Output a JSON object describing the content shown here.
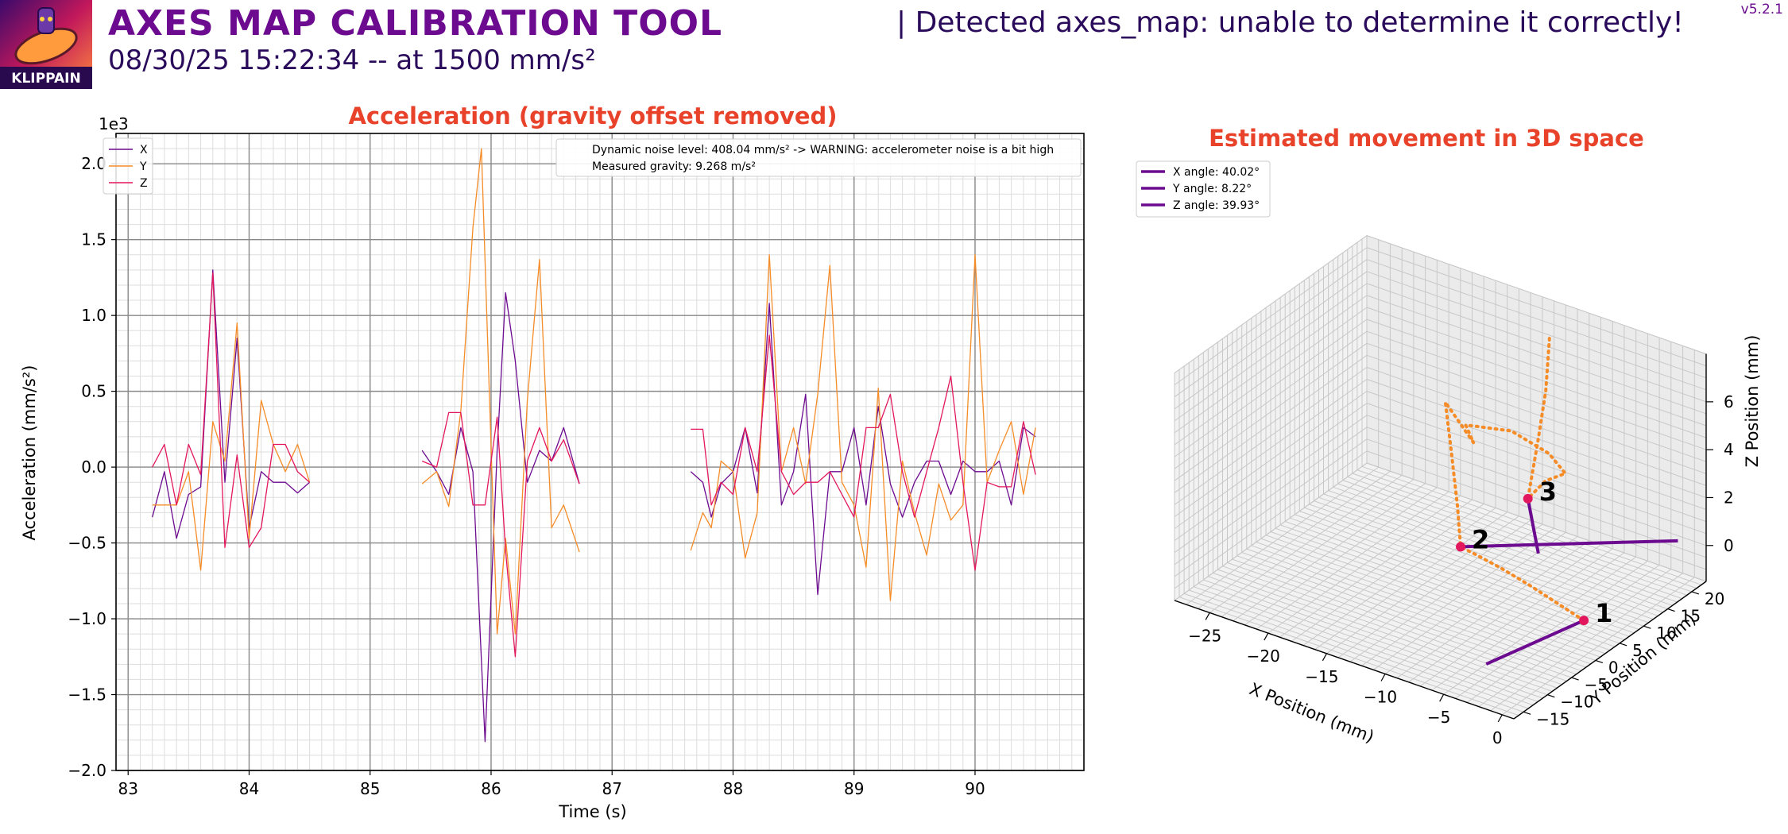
{
  "header": {
    "title": "AXES MAP CALIBRATION TOOL",
    "subtitle": "08/30/25 15:22:34 -- at 1500 mm/s²",
    "status": "| Detected axes_map: unable to determine it correctly!",
    "version": "v5.2.1",
    "logo_text": "KLIPPAIN"
  },
  "colors": {
    "title": "#6c0b8f",
    "plot_title": "#e8422b",
    "x": "#6c0b8f",
    "y": "#f58c28",
    "z": "#e3175d",
    "point": "#e3175d",
    "path": "#f58c28"
  },
  "chart_data": [
    {
      "type": "line",
      "title": "Acceleration (gravity offset removed)",
      "xlabel": "Time (s)",
      "ylabel": "Acceleration (mm/s²)",
      "y_scale_label": "1e3",
      "xlim": [
        82.9,
        90.9
      ],
      "ylim": [
        -2.0,
        2.2
      ],
      "x_ticks": [
        "83",
        "84",
        "85",
        "86",
        "87",
        "88",
        "89",
        "90"
      ],
      "y_ticks": [
        "−2.0",
        "−1.5",
        "−1.0",
        "−0.5",
        "0.0",
        "0.5",
        "1.0",
        "1.5",
        "2.0"
      ],
      "grid": true,
      "legend": {
        "placement": "top-left",
        "entries": [
          "X",
          "Y",
          "Z"
        ]
      },
      "annotations": [
        "Dynamic noise level: 408.04 mm/s² -> WARNING: accelerometer noise is a bit high",
        "Measured gravity: 9.268 m/s²"
      ],
      "series": [
        {
          "name": "X",
          "segments": [
            [
              [
                83.2,
                -0.33
              ],
              [
                83.3,
                -0.03
              ],
              [
                83.4,
                -0.47
              ],
              [
                83.5,
                -0.18
              ],
              [
                83.6,
                -0.13
              ],
              [
                83.7,
                1.3
              ],
              [
                83.8,
                -0.1
              ],
              [
                83.9,
                0.85
              ],
              [
                84.0,
                -0.4
              ],
              [
                84.1,
                -0.03
              ],
              [
                84.2,
                -0.1
              ],
              [
                84.3,
                -0.1
              ],
              [
                84.4,
                -0.17
              ],
              [
                84.5,
                -0.1
              ]
            ],
            [
              [
                85.43,
                0.11
              ],
              [
                85.55,
                -0.03
              ],
              [
                85.65,
                -0.18
              ],
              [
                85.75,
                0.26
              ],
              [
                85.85,
                -0.03
              ],
              [
                85.95,
                -1.81
              ],
              [
                86.05,
                0.11
              ],
              [
                86.12,
                1.15
              ],
              [
                86.2,
                0.7
              ],
              [
                86.3,
                -0.1
              ],
              [
                86.4,
                0.11
              ],
              [
                86.5,
                0.04
              ],
              [
                86.6,
                0.26
              ],
              [
                86.73,
                -0.11
              ]
            ],
            [
              [
                87.65,
                -0.03
              ],
              [
                87.75,
                -0.1
              ],
              [
                87.82,
                -0.33
              ],
              [
                87.9,
                -0.11
              ],
              [
                88.0,
                -0.03
              ],
              [
                88.1,
                0.26
              ],
              [
                88.2,
                -0.17
              ],
              [
                88.3,
                1.08
              ],
              [
                88.4,
                -0.25
              ],
              [
                88.5,
                -0.03
              ],
              [
                88.6,
                0.48
              ],
              [
                88.7,
                -0.84
              ],
              [
                88.8,
                -0.03
              ],
              [
                88.9,
                -0.03
              ],
              [
                89.0,
                0.26
              ],
              [
                89.1,
                -0.25
              ],
              [
                89.2,
                0.4
              ],
              [
                89.3,
                -0.11
              ],
              [
                89.4,
                -0.33
              ],
              [
                89.5,
                -0.1
              ],
              [
                89.6,
                0.04
              ],
              [
                89.7,
                0.04
              ],
              [
                89.8,
                -0.18
              ],
              [
                89.9,
                0.04
              ],
              [
                90.0,
                -0.03
              ],
              [
                90.1,
                -0.03
              ],
              [
                90.2,
                0.04
              ],
              [
                90.3,
                -0.25
              ],
              [
                90.4,
                0.26
              ],
              [
                90.5,
                0.2
              ]
            ]
          ]
        },
        {
          "name": "Y",
          "segments": [
            [
              [
                83.2,
                -0.25
              ],
              [
                83.3,
                -0.25
              ],
              [
                83.4,
                -0.25
              ],
              [
                83.5,
                -0.03
              ],
              [
                83.6,
                -0.68
              ],
              [
                83.7,
                0.3
              ],
              [
                83.8,
                0.04
              ],
              [
                83.9,
                0.95
              ],
              [
                84.0,
                -0.47
              ],
              [
                84.1,
                0.44
              ],
              [
                84.2,
                0.15
              ],
              [
                84.3,
                -0.03
              ],
              [
                84.4,
                0.15
              ],
              [
                84.5,
                -0.1
              ]
            ],
            [
              [
                85.43,
                -0.11
              ],
              [
                85.55,
                -0.03
              ],
              [
                85.65,
                -0.26
              ],
              [
                85.75,
                0.37
              ],
              [
                85.85,
                1.58
              ],
              [
                85.92,
                2.1
              ],
              [
                86.05,
                -1.1
              ],
              [
                86.12,
                -0.47
              ],
              [
                86.2,
                -1.1
              ],
              [
                86.3,
                0.44
              ],
              [
                86.4,
                1.37
              ],
              [
                86.5,
                -0.4
              ],
              [
                86.6,
                -0.25
              ],
              [
                86.73,
                -0.56
              ]
            ],
            [
              [
                87.65,
                -0.55
              ],
              [
                87.75,
                -0.3
              ],
              [
                87.82,
                -0.4
              ],
              [
                87.9,
                0.04
              ],
              [
                88.0,
                -0.03
              ],
              [
                88.1,
                -0.6
              ],
              [
                88.2,
                -0.3
              ],
              [
                88.3,
                1.4
              ],
              [
                88.4,
                -0.03
              ],
              [
                88.5,
                0.26
              ],
              [
                88.6,
                -0.11
              ],
              [
                88.7,
                0.48
              ],
              [
                88.8,
                1.33
              ],
              [
                88.9,
                -0.1
              ],
              [
                89.0,
                -0.25
              ],
              [
                89.1,
                -0.66
              ],
              [
                89.2,
                0.52
              ],
              [
                89.3,
                -0.88
              ],
              [
                89.4,
                0.04
              ],
              [
                89.5,
                -0.3
              ],
              [
                89.6,
                -0.58
              ],
              [
                89.7,
                -0.11
              ],
              [
                89.8,
                -0.35
              ],
              [
                89.9,
                -0.25
              ],
              [
                90.0,
                1.4
              ],
              [
                90.1,
                -0.1
              ],
              [
                90.2,
                0.11
              ],
              [
                90.3,
                0.3
              ],
              [
                90.4,
                -0.18
              ],
              [
                90.5,
                0.26
              ]
            ]
          ]
        },
        {
          "name": "Z",
          "segments": [
            [
              [
                83.2,
                0.0
              ],
              [
                83.3,
                0.15
              ],
              [
                83.4,
                -0.25
              ],
              [
                83.5,
                0.15
              ],
              [
                83.6,
                -0.05
              ],
              [
                83.7,
                1.28
              ],
              [
                83.8,
                -0.53
              ],
              [
                83.9,
                0.08
              ],
              [
                84.0,
                -0.53
              ],
              [
                84.1,
                -0.4
              ],
              [
                84.2,
                0.15
              ],
              [
                84.3,
                0.15
              ],
              [
                84.4,
                -0.03
              ],
              [
                84.5,
                -0.1
              ]
            ],
            [
              [
                85.43,
                0.04
              ],
              [
                85.55,
                0.0
              ],
              [
                85.65,
                0.36
              ],
              [
                85.75,
                0.36
              ],
              [
                85.85,
                -0.25
              ],
              [
                85.95,
                -0.25
              ],
              [
                86.05,
                0.33
              ],
              [
                86.12,
                -0.55
              ],
              [
                86.2,
                -1.25
              ],
              [
                86.3,
                0.04
              ],
              [
                86.4,
                0.26
              ],
              [
                86.5,
                0.04
              ],
              [
                86.6,
                0.18
              ],
              [
                86.73,
                -0.11
              ]
            ],
            [
              [
                87.65,
                0.25
              ],
              [
                87.75,
                0.25
              ],
              [
                87.82,
                -0.25
              ],
              [
                87.9,
                -0.1
              ],
              [
                88.0,
                -0.18
              ],
              [
                88.1,
                0.26
              ],
              [
                88.2,
                -0.03
              ],
              [
                88.3,
                0.87
              ],
              [
                88.4,
                -0.03
              ],
              [
                88.5,
                -0.18
              ],
              [
                88.6,
                -0.1
              ],
              [
                88.7,
                -0.1
              ],
              [
                88.8,
                -0.03
              ],
              [
                88.9,
                -0.18
              ],
              [
                89.0,
                -0.33
              ],
              [
                89.1,
                0.26
              ],
              [
                89.2,
                0.26
              ],
              [
                89.3,
                0.48
              ],
              [
                89.4,
                -0.03
              ],
              [
                89.5,
                -0.33
              ],
              [
                89.6,
                -0.03
              ],
              [
                89.7,
                0.26
              ],
              [
                89.8,
                0.6
              ],
              [
                89.9,
                -0.1
              ],
              [
                90.0,
                -0.68
              ],
              [
                90.1,
                -0.1
              ],
              [
                90.2,
                -0.13
              ],
              [
                90.3,
                -0.13
              ],
              [
                90.4,
                0.3
              ],
              [
                90.5,
                -0.05
              ]
            ]
          ]
        }
      ]
    },
    {
      "type": "scatter",
      "subtype": "3d-path",
      "title": "Estimated movement in 3D space",
      "xlabel": "X Position (mm)",
      "ylabel": "Y Position (mm)",
      "zlabel": "Z Position (mm)",
      "xlim": [
        -28,
        1
      ],
      "ylim": [
        -17,
        23
      ],
      "zlim": [
        -1.5,
        8
      ],
      "x_ticks": [
        -25,
        -20,
        -15,
        -10,
        -5,
        0
      ],
      "y_ticks": [
        -15,
        -10,
        -5,
        0,
        5,
        10,
        15,
        20
      ],
      "z_ticks": [
        0,
        2,
        4,
        6
      ],
      "legend": {
        "placement": "top-left",
        "entries": [
          "X angle: 40.02°",
          "Y angle: 8.22°",
          "Z angle: 39.93°"
        ]
      },
      "points": [
        {
          "label": "1",
          "x": 0.0,
          "y": 0.0,
          "z": 0.0
        },
        {
          "label": "2",
          "x": -13.0,
          "y": 6.0,
          "z": 0.0
        },
        {
          "label": "3",
          "x": -13.0,
          "y": 20.0,
          "z": 0.0
        }
      ],
      "direction_lines": [
        {
          "name": "X angle: 40.02°",
          "from": [
            -2.1,
            -15.2,
            0.0
          ],
          "to": [
            0.0,
            0.0,
            0.0
          ]
        },
        {
          "name": "Y angle: 8.22°",
          "from": [
            -13.0,
            6.0,
            0.0
          ],
          "to": [
            -1.0,
            22.0,
            0.0
          ]
        },
        {
          "name": "Z angle: 39.93°",
          "from": [
            -13.0,
            20.0,
            0.0
          ],
          "to": [
            -8.0,
            10.0,
            0.0
          ]
        }
      ],
      "path": [
        [
          0.0,
          0.0,
          0.0
        ],
        [
          -3.0,
          1.6,
          0.0
        ],
        [
          -6.0,
          3.2,
          0.0
        ],
        [
          -9.0,
          4.6,
          0.0
        ],
        [
          -11.5,
          5.5,
          0.0
        ],
        [
          -13.0,
          6.0,
          0.0
        ],
        [
          -14.5,
          9.0,
          1.0
        ],
        [
          -16.5,
          12.5,
          2.6
        ],
        [
          -17.8,
          14.5,
          4.0
        ],
        [
          -16.0,
          16.0,
          2.4
        ],
        [
          -17.5,
          18.0,
          2.6
        ],
        [
          -14.0,
          19.0,
          2.8
        ],
        [
          -11.0,
          19.5,
          2.3
        ],
        [
          -9.8,
          20.0,
          1.6
        ],
        [
          -11.5,
          20.0,
          1.0
        ],
        [
          -13.0,
          20.0,
          0.0
        ],
        [
          -12.4,
          20.6,
          2.4
        ],
        [
          -11.8,
          20.8,
          4.6
        ],
        [
          -11.5,
          20.9,
          7.0
        ]
      ]
    }
  ]
}
